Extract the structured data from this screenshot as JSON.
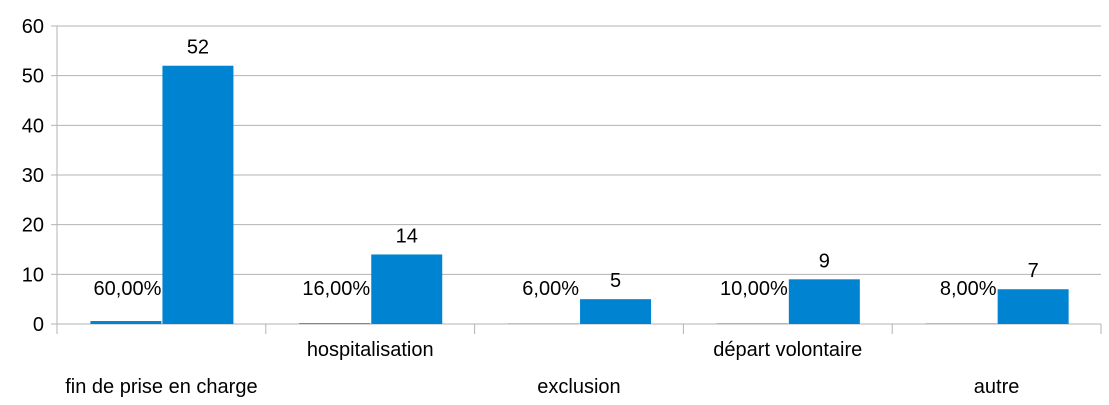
{
  "chart_data": {
    "type": "bar",
    "categories": [
      "fin de prise en charge",
      "hospitalisation",
      "exclusion",
      "départ volontaire",
      "autre"
    ],
    "series": [
      {
        "values": [
          0.6,
          0.16,
          0.06,
          0.1,
          0.08
        ],
        "labels": [
          "60,00%",
          "16,00%",
          "6,00%",
          "10,00%",
          "8,00%"
        ]
      },
      {
        "values": [
          52,
          14,
          5,
          9,
          7
        ],
        "labels": [
          "52",
          "14",
          "5",
          "9",
          "7"
        ]
      }
    ],
    "yticks": [
      "0",
      "10",
      "20",
      "30",
      "40",
      "50",
      "60"
    ],
    "ylim": [
      0,
      60
    ],
    "grid": true,
    "legend": "none",
    "title": "",
    "xlabel": "",
    "ylabel": "",
    "colors": {
      "bar": "#0084d1",
      "grid": "#b3b3b3",
      "axis": "#b3b3b3"
    }
  }
}
